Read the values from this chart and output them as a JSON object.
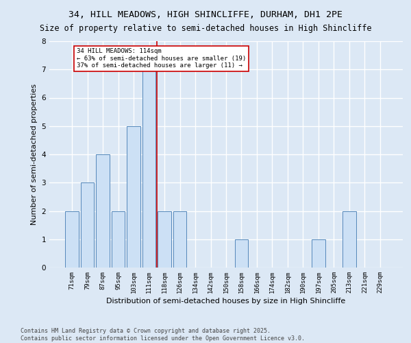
{
  "title_line1": "34, HILL MEADOWS, HIGH SHINCLIFFE, DURHAM, DH1 2PE",
  "title_line2": "Size of property relative to semi-detached houses in High Shincliffe",
  "xlabel": "Distribution of semi-detached houses by size in High Shincliffe",
  "ylabel": "Number of semi-detached properties",
  "categories": [
    "71sqm",
    "79sqm",
    "87sqm",
    "95sqm",
    "103sqm",
    "111sqm",
    "118sqm",
    "126sqm",
    "134sqm",
    "142sqm",
    "150sqm",
    "158sqm",
    "166sqm",
    "174sqm",
    "182sqm",
    "190sqm",
    "197sqm",
    "205sqm",
    "213sqm",
    "221sqm",
    "229sqm"
  ],
  "values": [
    2,
    3,
    4,
    2,
    5,
    7,
    2,
    2,
    0,
    0,
    0,
    1,
    0,
    0,
    0,
    0,
    1,
    0,
    2,
    0,
    0
  ],
  "bar_color": "#cce0f5",
  "bar_edge_color": "#5588bb",
  "vline_color": "#cc0000",
  "vline_x": 5.5,
  "annotation_title": "34 HILL MEADOWS: 114sqm",
  "annotation_line1": "← 63% of semi-detached houses are smaller (19)",
  "annotation_line2": "37% of semi-detached houses are larger (11) →",
  "annotation_box_color": "#ffffff",
  "annotation_box_edge": "#cc0000",
  "footer_line1": "Contains HM Land Registry data © Crown copyright and database right 2025.",
  "footer_line2": "Contains public sector information licensed under the Open Government Licence v3.0.",
  "ylim": [
    0,
    8
  ],
  "yticks": [
    0,
    1,
    2,
    3,
    4,
    5,
    6,
    7,
    8
  ],
  "background_color": "#dce8f5",
  "plot_background": "#dce8f5",
  "grid_color": "#ffffff",
  "title_fontsize": 9.5,
  "subtitle_fontsize": 8.5,
  "tick_fontsize": 6.5,
  "label_fontsize": 8,
  "footer_fontsize": 6
}
